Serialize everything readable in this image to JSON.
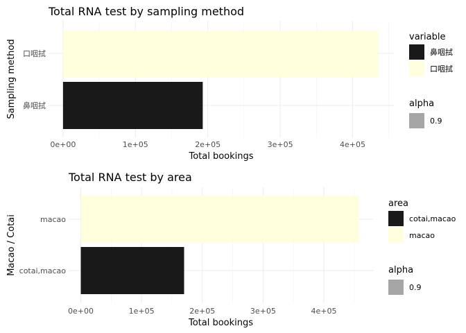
{
  "chart_data": [
    {
      "type": "bar",
      "orientation": "horizontal",
      "title": "Total RNA test by sampling method",
      "xlabel": "Total bookings",
      "ylabel": "Sampling method",
      "categories": [
        "口咽拭",
        "鼻咽拭"
      ],
      "values": [
        435000,
        193000
      ],
      "bar_colors": [
        "#FFFFD9",
        "#000000"
      ],
      "alpha": 0.9,
      "xlim": [
        -20000,
        457000
      ],
      "xticks": [
        0,
        100000,
        200000,
        300000,
        400000
      ],
      "xtick_labels": [
        "0e+00",
        "1e+05",
        "2e+05",
        "3e+05",
        "4e+05"
      ],
      "grid": true,
      "legend": {
        "position": "right",
        "fill_title": "variable",
        "fill_items": [
          {
            "label": "鼻咽拭",
            "color": "#000000"
          },
          {
            "label": "口咽拭",
            "color": "#FFFFD9"
          }
        ],
        "alpha_title": "alpha",
        "alpha_items": [
          {
            "label": "0.9",
            "color": "#a6a6a6"
          }
        ]
      }
    },
    {
      "type": "bar",
      "orientation": "horizontal",
      "title": "Total RNA test by area",
      "xlabel": "Total bookings",
      "ylabel": "Macao / Cotai",
      "categories": [
        "macao",
        "cotai,macao"
      ],
      "values": [
        458000,
        170000
      ],
      "bar_colors": [
        "#FFFFD9",
        "#000000"
      ],
      "alpha": 0.9,
      "xlim": [
        -20000,
        481000
      ],
      "xticks": [
        0,
        100000,
        200000,
        300000,
        400000
      ],
      "xtick_labels": [
        "0e+00",
        "1e+05",
        "2e+05",
        "3e+05",
        "4e+05"
      ],
      "grid": true,
      "legend": {
        "position": "right",
        "fill_title": "area",
        "fill_items": [
          {
            "label": "cotai,macao",
            "color": "#000000"
          },
          {
            "label": "macao",
            "color": "#FFFFD9"
          }
        ],
        "alpha_title": "alpha",
        "alpha_items": [
          {
            "label": "0.9",
            "color": "#a6a6a6"
          }
        ]
      }
    }
  ]
}
